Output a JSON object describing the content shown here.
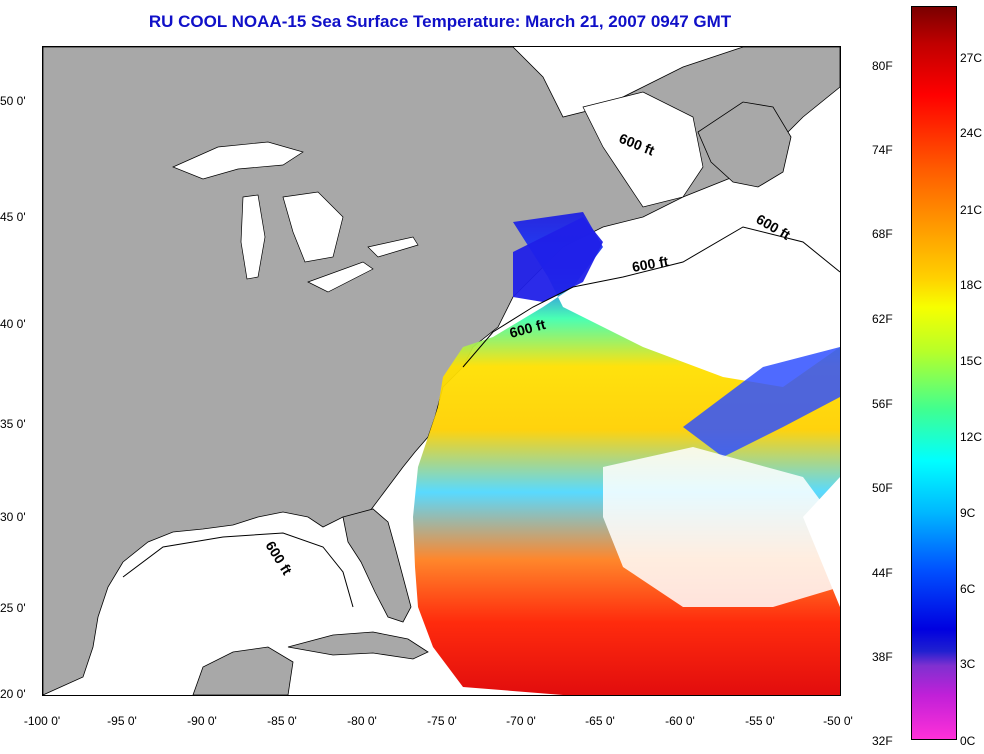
{
  "title": "RU COOL  NOAA-15  Sea Surface Temperature:  March 21, 2007 0947 GMT",
  "x_ticks": [
    "-100 0'",
    "-95 0'",
    "-90 0'",
    "-85 0'",
    "-80 0'",
    "-75 0'",
    "-70 0'",
    "-65 0'",
    "-60 0'",
    "-55 0'",
    "-50 0'"
  ],
  "y_ticks": [
    "50 0'",
    "45 0'",
    "40 0'",
    "35 0'",
    "30 0'",
    "25 0'",
    "20 0'"
  ],
  "isobath_label": "600 ft",
  "colorbar": {
    "fahrenheit": [
      "80F",
      "74F",
      "68F",
      "62F",
      "56F",
      "50F",
      "44F",
      "38F",
      "32F"
    ],
    "celsius": [
      "27C",
      "24C",
      "21C",
      "18C",
      "15C",
      "12C",
      "9C",
      "6C",
      "3C",
      "0C"
    ]
  },
  "colors": {
    "land": "#a8a8a8",
    "water": "#ffffff",
    "title": "#1010c8"
  }
}
